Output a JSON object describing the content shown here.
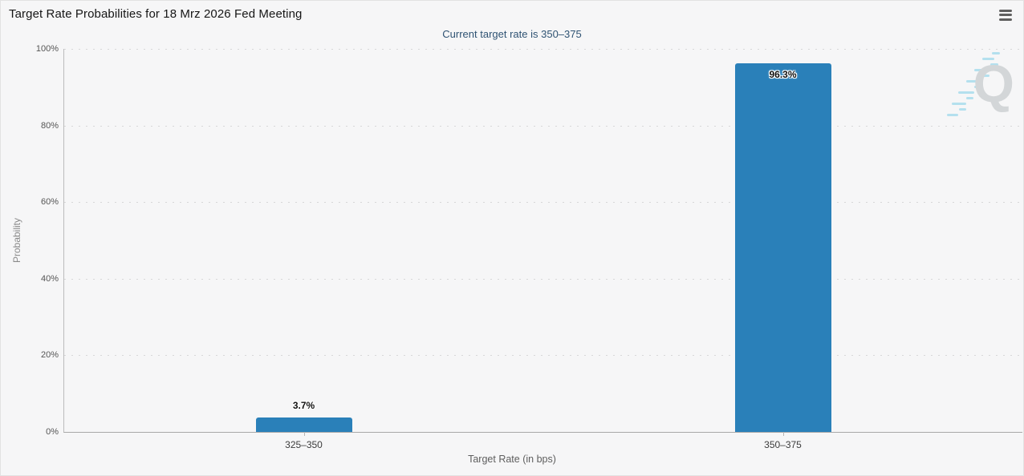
{
  "watermark": {
    "letter": "Q"
  },
  "chart_data": {
    "type": "bar",
    "title": "Target Rate Probabilities for 18 Mrz 2026 Fed Meeting",
    "subtitle": "Current target rate is 350–375",
    "categories": [
      "325–350",
      "350–375"
    ],
    "values": [
      3.7,
      96.3
    ],
    "value_labels": [
      "3.7%",
      "96.3%"
    ],
    "series": [
      {
        "name": "Probability",
        "values": [
          3.7,
          96.3
        ]
      }
    ],
    "xlabel": "Target Rate (in bps)",
    "ylabel": "Probability",
    "ylim": [
      0,
      100
    ],
    "ytick_labels": [
      "100%",
      "80%",
      "60%",
      "40%",
      "20%",
      "0%"
    ],
    "grid": "horizontal-dotted",
    "legend": "none",
    "bar_color": "#2a80b9"
  }
}
